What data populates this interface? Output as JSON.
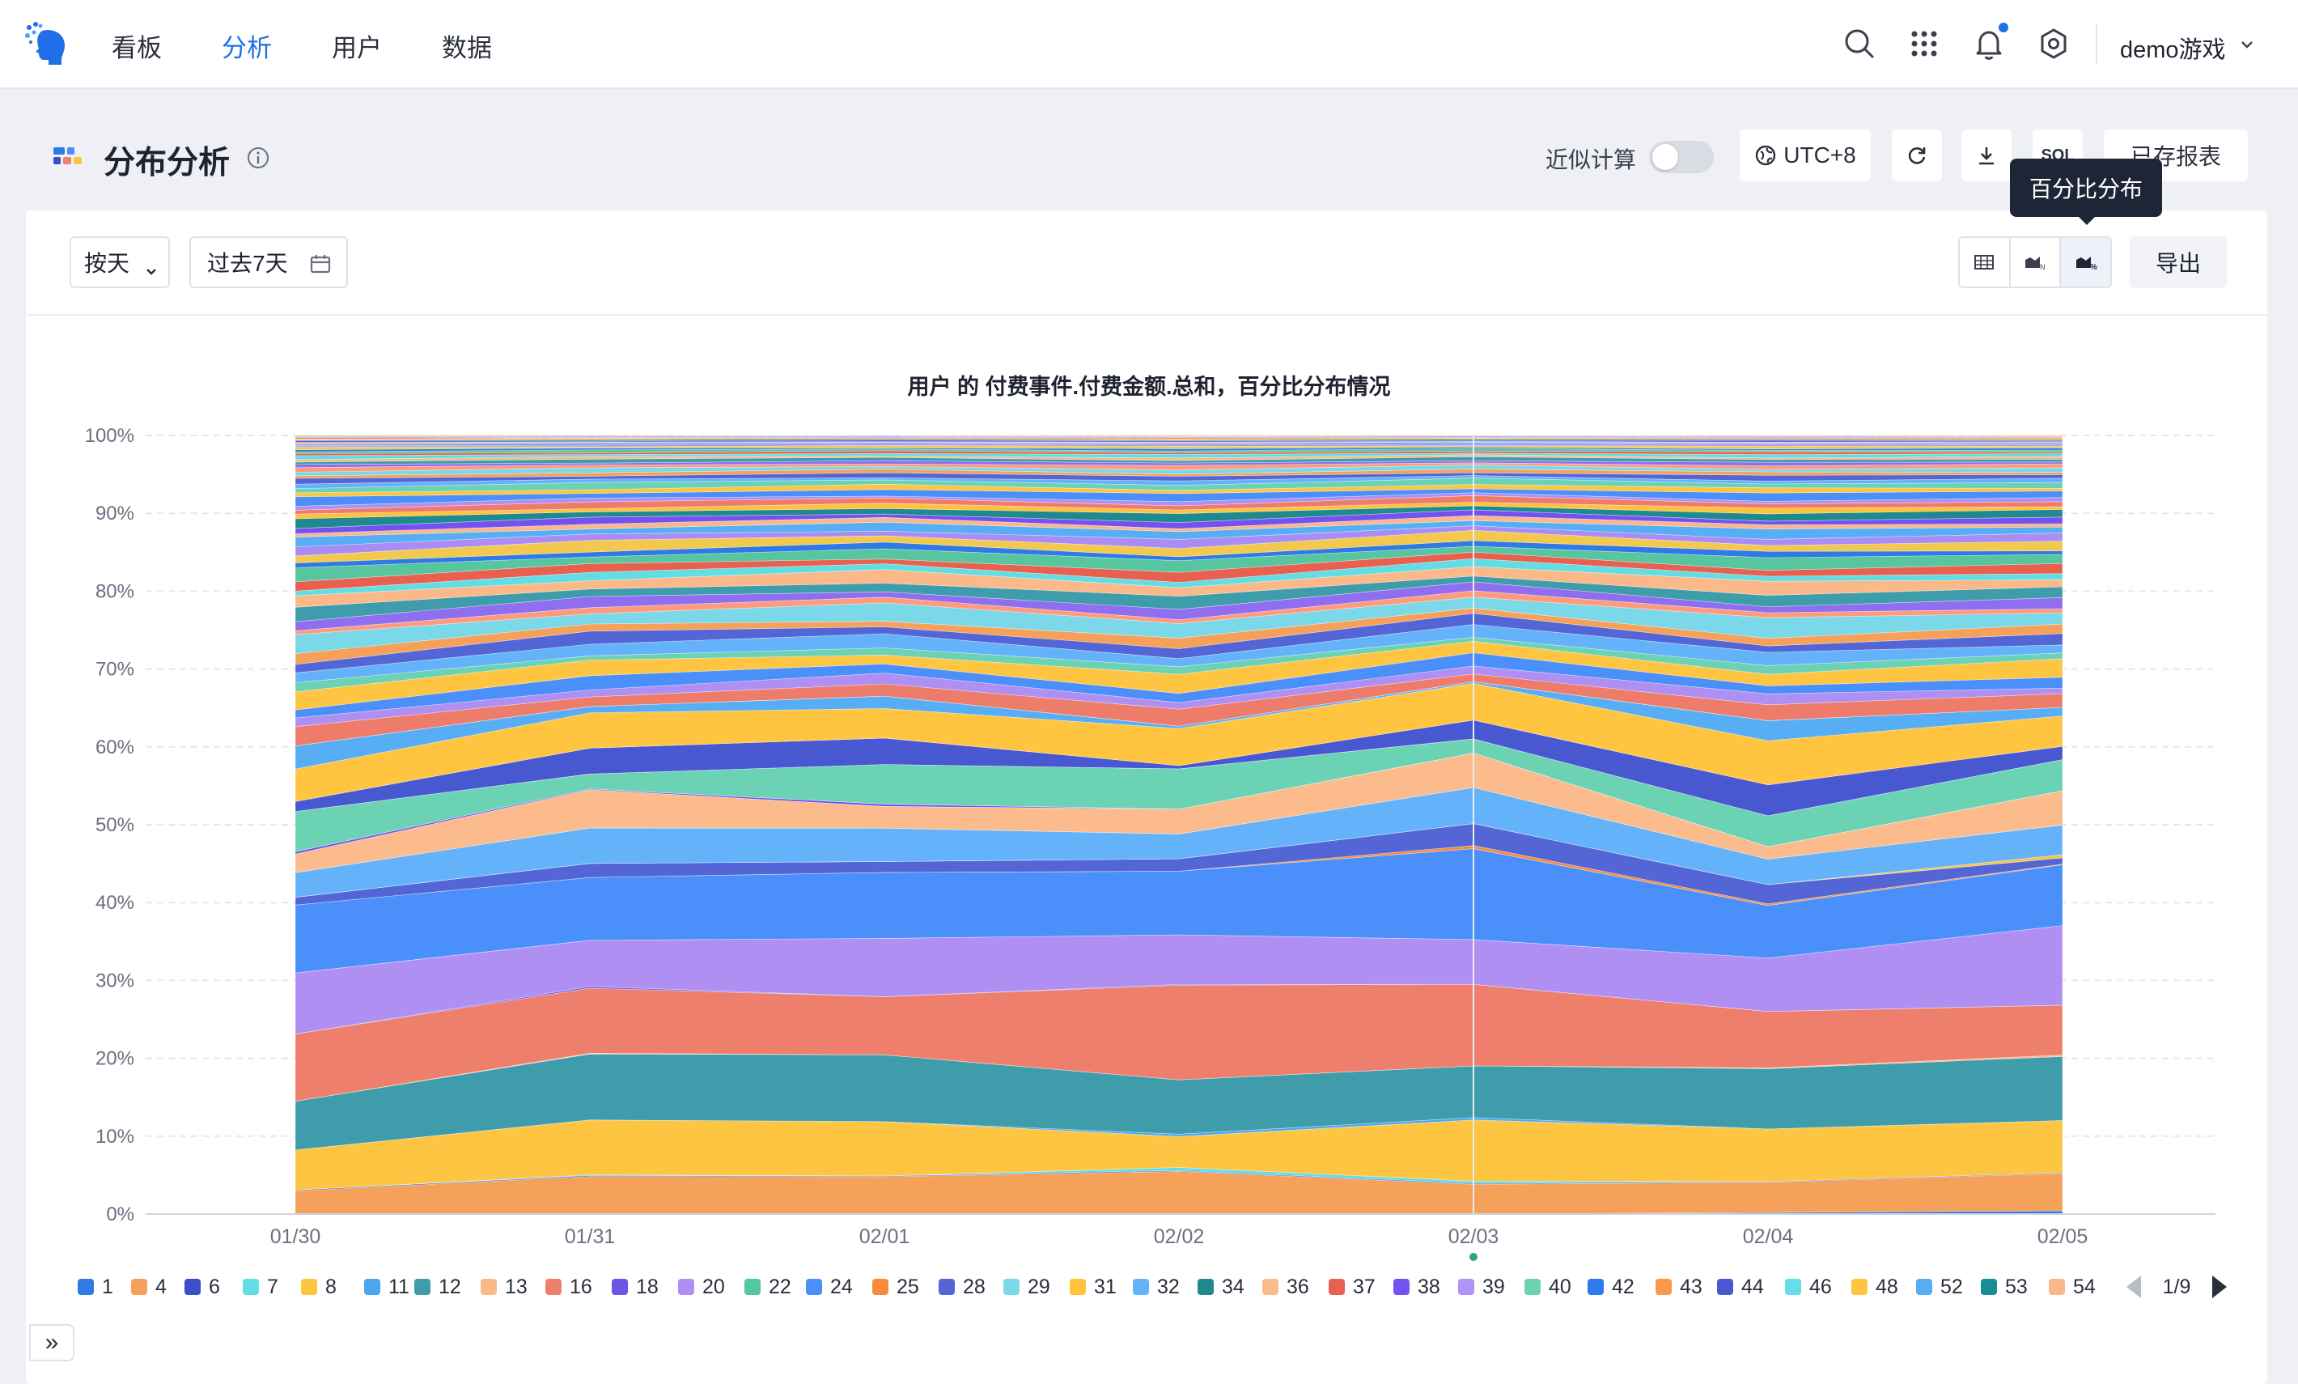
{
  "nav": {
    "items": [
      {
        "label": "看板"
      },
      {
        "label": "分析"
      },
      {
        "label": "用户"
      },
      {
        "label": "数据"
      }
    ],
    "active_index": 1,
    "user_name": "demo游戏",
    "icons": [
      "search-icon",
      "apps-grid-icon",
      "bell-icon",
      "gear-icon"
    ]
  },
  "header": {
    "title": "分布分析",
    "approx_label": "近似计算",
    "approx_enabled": false,
    "timezone_label": "UTC+8",
    "sql_label": "SQL",
    "saved_reports_label": "已存报表",
    "tooltip": "百分比分布"
  },
  "toolbar": {
    "granularity": "按天",
    "date_range": "过去7天",
    "export_label": "导出"
  },
  "colors": {
    "accent": "#1f6fe8",
    "tooltip_bg": "#1e2536"
  },
  "chart_data": {
    "type": "area",
    "stacked_percent": true,
    "title": "用户 的 付费事件.付费金额.总和，百分比分布情况",
    "x": [
      "01/30",
      "01/31",
      "02/01",
      "02/02",
      "02/03",
      "02/04",
      "02/05"
    ],
    "y_ticks": [
      "0%",
      "10%",
      "20%",
      "30%",
      "40%",
      "50%",
      "60%",
      "70%",
      "80%",
      "90%",
      "100%"
    ],
    "ylim": [
      0,
      100
    ],
    "grid": true,
    "highlighted_x": "02/03",
    "legend_page": "1/9",
    "series": [
      {
        "name": "1",
        "color": "#2f7ae5",
        "values": [
          0.0,
          0.0,
          0.0,
          0.0,
          0.0,
          0.2,
          0.4
        ]
      },
      {
        "name": "4",
        "color": "#f6a15a",
        "values": [
          3.0,
          4.8,
          4.8,
          5.5,
          3.8,
          3.9,
          4.8
        ]
      },
      {
        "name": "6",
        "color": "#3a4fc9",
        "values": [
          0.1,
          0.1,
          0.1,
          0.1,
          0.1,
          0.1,
          0.1
        ]
      },
      {
        "name": "7",
        "color": "#62dde3",
        "values": [
          0.0,
          0.1,
          0.0,
          0.4,
          0.3,
          0.0,
          0.0
        ]
      },
      {
        "name": "8",
        "color": "#fdc542",
        "values": [
          5.2,
          7.0,
          7.0,
          4.0,
          7.8,
          6.8,
          6.7
        ]
      },
      {
        "name": "11",
        "color": "#4aa6f0",
        "values": [
          0.0,
          0.0,
          0.0,
          0.3,
          0.3,
          0.0,
          0.0
        ]
      },
      {
        "name": "12",
        "color": "#3f9cab",
        "values": [
          6.3,
          8.4,
          8.6,
          7.0,
          6.6,
          7.8,
          8.2
        ]
      },
      {
        "name": "13",
        "color": "#fbb98a",
        "values": [
          0.0,
          0.1,
          0.0,
          0.0,
          0.0,
          0.1,
          0.2
        ]
      },
      {
        "name": "16",
        "color": "#ef7f6d",
        "values": [
          8.7,
          8.3,
          7.5,
          12.2,
          10.4,
          7.3,
          6.4
        ]
      },
      {
        "name": "18",
        "color": "#6f55e6",
        "values": [
          0.0,
          0.2,
          0.0,
          0.1,
          0.0,
          0.0,
          0.0
        ]
      },
      {
        "name": "20",
        "color": "#b08ff2",
        "values": [
          7.9,
          5.9,
          7.5,
          6.4,
          5.7,
          6.9,
          10.2
        ]
      },
      {
        "name": "22",
        "color": "#57c59d",
        "values": [
          0.0,
          0.0,
          0.0,
          0.0,
          0.0,
          0.0,
          0.0
        ]
      },
      {
        "name": "24",
        "color": "#4a8ffa",
        "values": [
          8.8,
          8.0,
          8.5,
          8.2,
          11.6,
          6.8,
          7.8
        ]
      },
      {
        "name": "25",
        "color": "#f58c3d",
        "values": [
          0.0,
          0.0,
          0.0,
          0.0,
          0.4,
          0.2,
          0.1
        ]
      },
      {
        "name": "28",
        "color": "#5466d6",
        "values": [
          1.0,
          1.8,
          1.4,
          1.6,
          2.8,
          2.5,
          0.8
        ]
      },
      {
        "name": "29",
        "color": "#7ad8e8",
        "values": [
          0.0,
          0.0,
          0.0,
          0.0,
          0.0,
          0.0,
          0.0
        ]
      },
      {
        "name": "31",
        "color": "#ffc23a",
        "values": [
          0.0,
          0.0,
          0.0,
          0.0,
          0.0,
          0.0,
          0.4
        ]
      },
      {
        "name": "32",
        "color": "#64b3fa",
        "values": [
          3.2,
          4.5,
          4.3,
          3.2,
          4.6,
          3.3,
          3.8
        ]
      },
      {
        "name": "34",
        "color": "#1e8a8f",
        "values": [
          0.0,
          0.0,
          0.0,
          0.0,
          0.0,
          0.0,
          0.0
        ]
      },
      {
        "name": "36",
        "color": "#fbbb8c",
        "values": [
          2.4,
          4.9,
          2.8,
          3.2,
          4.4,
          1.6,
          4.4
        ]
      },
      {
        "name": "37",
        "color": "#e8604f",
        "values": [
          0.0,
          0.0,
          0.0,
          0.0,
          0.0,
          0.0,
          0.0
        ]
      },
      {
        "name": "38",
        "color": "#7452f0",
        "values": [
          0.3,
          0.1,
          0.3,
          0.0,
          0.0,
          0.0,
          0.0
        ]
      },
      {
        "name": "39",
        "color": "#b292f5",
        "values": [
          0.0,
          0.0,
          0.0,
          0.0,
          0.0,
          0.0,
          0.0
        ]
      },
      {
        "name": "40",
        "color": "#6bd2b4",
        "values": [
          5.2,
          1.9,
          5.1,
          5.2,
          1.8,
          4.0,
          4.0
        ]
      },
      {
        "name": "42",
        "color": "#2f78ee",
        "values": [
          0.0,
          0.0,
          0.0,
          0.0,
          0.0,
          0.0,
          0.0
        ]
      },
      {
        "name": "43",
        "color": "#f59a4e",
        "values": [
          0.0,
          0.0,
          0.0,
          0.0,
          0.0,
          0.0,
          0.0
        ]
      },
      {
        "name": "44",
        "color": "#4858d1",
        "values": [
          1.3,
          3.3,
          3.4,
          0.4,
          2.4,
          4.0,
          1.7
        ]
      },
      {
        "name": "46",
        "color": "#66dde8",
        "values": [
          0.0,
          0.0,
          0.0,
          0.0,
          0.0,
          0.0,
          0.0
        ]
      },
      {
        "name": "48",
        "color": "#ffc540",
        "values": [
          4.2,
          4.5,
          3.8,
          4.8,
          4.7,
          5.7,
          3.9
        ]
      },
      {
        "name": "52",
        "color": "#58aef5",
        "values": [
          3.0,
          0.8,
          1.6,
          0.3,
          0.2,
          2.6,
          1.1
        ]
      },
      {
        "name": "53",
        "color": "#178e93",
        "values": [
          0.0,
          0.0,
          0.0,
          0.0,
          0.0,
          0.0,
          0.0
        ]
      },
      {
        "name": "54",
        "color": "#fab78c",
        "values": [
          0.0,
          0.0,
          0.0,
          0.0,
          0.0,
          0.0,
          0.0
        ]
      }
    ],
    "other_bands": {
      "colors": [
        "#ee7c6a",
        "#b08ff2",
        "#4a8ffa",
        "#fdc542",
        "#6bd2b4",
        "#64b3fa",
        "#5466d6",
        "#f6a15a",
        "#7ad8e8",
        "#ff9b7d",
        "#8f6ff0",
        "#3f9cab",
        "#fbb98a",
        "#62dde3",
        "#e8604f",
        "#57c59d",
        "#2f7ae5",
        "#f2c94c",
        "#a98df5",
        "#58aef5",
        "#fab78c",
        "#7452f0",
        "#1e8a8f",
        "#ffc23a"
      ],
      "weights": [
        1.2,
        0.8,
        1.0,
        1.3,
        0.6,
        1.1,
        0.9,
        0.7,
        1.4,
        0.5,
        0.8,
        0.9,
        1.0,
        0.6,
        0.7,
        0.9,
        0.5,
        0.8,
        0.6,
        0.7,
        0.4,
        0.5,
        0.6,
        0.4,
        0.5,
        0.3,
        0.6,
        0.4,
        0.5,
        0.3,
        0.4,
        0.3,
        0.35,
        0.3,
        0.25,
        0.3,
        0.2,
        0.25,
        0.2,
        0.2,
        0.15,
        0.2,
        0.15,
        0.15,
        0.1,
        0.12,
        0.1,
        0.1,
        0.08,
        0.08,
        0.06,
        0.06
      ]
    }
  }
}
